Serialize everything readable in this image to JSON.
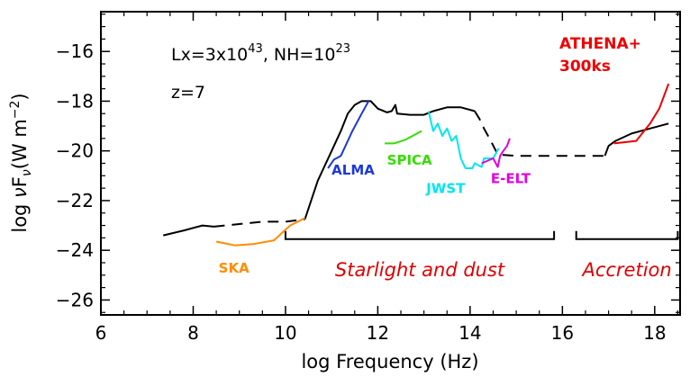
{
  "chart_data": {
    "type": "line",
    "xlabel": "log Frequency (Hz)",
    "ylabel": {
      "pre": "log ",
      "nu": "ν",
      "F": "F",
      "sub": "ν",
      "post": "(W m",
      "sup": "−2",
      "close": ")"
    },
    "xlim": [
      6,
      18.55
    ],
    "ylim": [
      -26.6,
      -14.4
    ],
    "xticks": [
      6,
      8,
      10,
      12,
      14,
      16,
      18
    ],
    "xtick_labels": [
      "6",
      "8",
      "10",
      "12",
      "14",
      "16",
      "18"
    ],
    "yticks": [
      -26,
      -24,
      -22,
      -20,
      -18,
      -16
    ],
    "ytick_labels": [
      "−26",
      "−24",
      "−22",
      "−20",
      "−18",
      "−16"
    ],
    "grid": false,
    "annotations": {
      "lx_prefix": "Lx=3x10",
      "lx_exp": "43",
      "nh_prefix": ", NH=10",
      "nh_exp": "23",
      "redshift": "z=7",
      "athena_line1": "ATHENA+",
      "athena_line2": "300ks"
    },
    "regions": [
      {
        "label": "Starlight and dust",
        "x_start": 10.0,
        "x_end": 15.82,
        "y": -23.55
      },
      {
        "label": "Accretion",
        "x_start": 16.3,
        "x_end": 18.5,
        "y": -23.55
      }
    ],
    "series": [
      {
        "color": "#000000",
        "dash": false,
        "points": [
          [
            7.35,
            -23.4
          ],
          [
            7.8,
            -23.2
          ],
          [
            8.2,
            -23.0
          ],
          [
            8.45,
            -23.05
          ]
        ]
      },
      {
        "color": "#000000",
        "dash": true,
        "points": [
          [
            8.45,
            -23.05
          ],
          [
            9.5,
            -22.85
          ],
          [
            10.0,
            -22.85
          ],
          [
            10.42,
            -22.75
          ]
        ]
      },
      {
        "color": "#000000",
        "dash": false,
        "points": [
          [
            10.42,
            -22.75
          ],
          [
            10.7,
            -21.2
          ],
          [
            11.0,
            -20.0
          ],
          [
            11.2,
            -19.2
          ],
          [
            11.35,
            -18.5
          ],
          [
            11.5,
            -18.15
          ],
          [
            11.65,
            -18.0
          ],
          [
            11.85,
            -18.0
          ],
          [
            12.0,
            -18.3
          ],
          [
            12.2,
            -18.45
          ],
          [
            12.3,
            -18.4
          ],
          [
            12.38,
            -18.15
          ],
          [
            12.42,
            -18.5
          ],
          [
            12.7,
            -18.55
          ],
          [
            13.0,
            -18.55
          ],
          [
            13.2,
            -18.4
          ],
          [
            13.5,
            -18.25
          ],
          [
            13.8,
            -18.25
          ],
          [
            14.1,
            -18.4
          ]
        ]
      },
      {
        "color": "#000000",
        "dash": true,
        "points": [
          [
            14.1,
            -18.4
          ],
          [
            14.2,
            -18.7
          ],
          [
            14.3,
            -19.1
          ],
          [
            14.45,
            -19.6
          ],
          [
            14.6,
            -20.15
          ],
          [
            15.0,
            -20.2
          ],
          [
            15.5,
            -20.2
          ],
          [
            16.5,
            -20.2
          ],
          [
            16.9,
            -20.2
          ]
        ]
      },
      {
        "color": "#000000",
        "dash": false,
        "points": [
          [
            16.92,
            -20.2
          ],
          [
            17.0,
            -19.8
          ],
          [
            17.15,
            -19.6
          ],
          [
            17.5,
            -19.3
          ],
          [
            17.9,
            -19.1
          ],
          [
            18.3,
            -18.9
          ]
        ]
      },
      {
        "name": "SKA",
        "color": "#ff8c00",
        "dash": false,
        "points": [
          [
            8.5,
            -23.65
          ],
          [
            8.9,
            -23.8
          ],
          [
            9.3,
            -23.75
          ],
          [
            9.75,
            -23.6
          ],
          [
            10.1,
            -23.0
          ],
          [
            10.42,
            -22.7
          ]
        ]
      },
      {
        "name": "ALMA",
        "color": "#1c39d8",
        "dash": false,
        "points": [
          [
            10.92,
            -20.7
          ],
          [
            11.05,
            -20.35
          ],
          [
            11.2,
            -20.2
          ],
          [
            11.45,
            -19.2
          ],
          [
            11.65,
            -18.5
          ],
          [
            11.8,
            -18.0
          ]
        ]
      },
      {
        "name": "SPICA",
        "color": "#33dd00",
        "dash": false,
        "points": [
          [
            12.15,
            -19.7
          ],
          [
            12.35,
            -19.7
          ],
          [
            12.6,
            -19.55
          ],
          [
            12.8,
            -19.35
          ],
          [
            12.95,
            -19.2
          ]
        ]
      },
      {
        "name": "JWST",
        "color": "#00e5ee",
        "dash": false,
        "points": [
          [
            13.1,
            -18.4
          ],
          [
            13.2,
            -19.2
          ],
          [
            13.3,
            -18.9
          ],
          [
            13.4,
            -19.4
          ],
          [
            13.5,
            -19.1
          ],
          [
            13.6,
            -19.6
          ],
          [
            13.7,
            -19.4
          ],
          [
            13.8,
            -20.3
          ],
          [
            13.9,
            -20.7
          ],
          [
            14.05,
            -20.7
          ],
          [
            14.1,
            -20.5
          ],
          [
            14.25,
            -20.65
          ],
          [
            14.3,
            -20.3
          ],
          [
            14.5,
            -20.3
          ],
          [
            14.62,
            -19.9
          ]
        ]
      },
      {
        "name": "E-ELT",
        "color": "#e000e0",
        "dash": false,
        "points": [
          [
            14.25,
            -20.5
          ],
          [
            14.5,
            -20.3
          ],
          [
            14.6,
            -20.65
          ],
          [
            14.65,
            -20.2
          ],
          [
            14.72,
            -20.0
          ],
          [
            14.8,
            -19.8
          ],
          [
            14.86,
            -19.5
          ]
        ]
      },
      {
        "name": "ATHENA+",
        "color": "#ee0000",
        "dash": false,
        "points": [
          [
            17.12,
            -19.7
          ],
          [
            17.6,
            -19.6
          ],
          [
            17.9,
            -18.9
          ],
          [
            18.1,
            -18.3
          ],
          [
            18.3,
            -17.3
          ]
        ]
      }
    ],
    "series_labels": [
      {
        "text": "SKA",
        "color": "#ff8c00",
        "x": 8.55,
        "y": -24.9
      },
      {
        "text": "ALMA",
        "color": "#1c39d8",
        "x": 11.0,
        "y": -20.95
      },
      {
        "text": "SPICA",
        "color": "#33dd00",
        "x": 12.2,
        "y": -20.55
      },
      {
        "text": "JWST",
        "color": "#00e5ee",
        "x": 13.05,
        "y": -21.7
      },
      {
        "text": "E-ELT",
        "color": "#e000e0",
        "x": 14.45,
        "y": -21.3
      }
    ]
  }
}
